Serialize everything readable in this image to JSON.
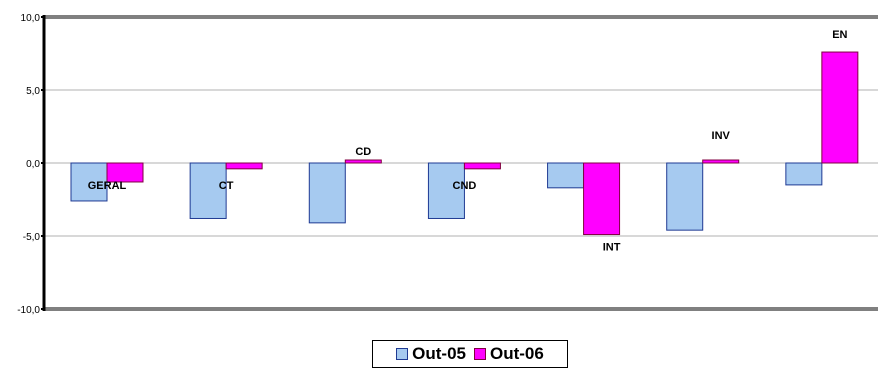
{
  "chart_data": {
    "type": "bar",
    "categories": [
      "GERAL",
      "CT",
      "CD",
      "CND",
      "INT",
      "INV",
      "EN"
    ],
    "series": [
      {
        "name": "Out-05",
        "values": [
          -2.6,
          -3.8,
          -4.1,
          -3.8,
          -1.7,
          -4.6,
          -1.5
        ]
      },
      {
        "name": "Out-06",
        "values": [
          -1.3,
          -0.4,
          0.0,
          -0.4,
          -4.9,
          0.1,
          7.6
        ]
      }
    ],
    "ylim": [
      -10,
      10
    ],
    "yticks": [
      "10,0",
      "5,0",
      "0,0",
      "-5,0",
      "-10,0"
    ],
    "grid": true,
    "legend_position": "bottom",
    "colors": {
      "Out-05": {
        "fill": "#a6caf0",
        "stroke": "#1f3a93"
      },
      "Out-06": {
        "fill": "#ff00ff",
        "stroke": "#800040"
      },
      "frame": "#808080",
      "gridline": "#b0b0b0"
    }
  }
}
